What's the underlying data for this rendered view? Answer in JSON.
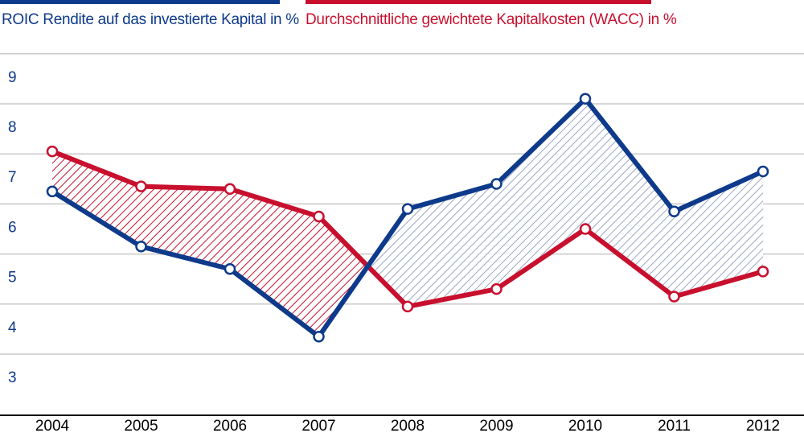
{
  "legend": {
    "roic": "ROIC Rendite auf das investierte Kapital in %",
    "wacc": "Durchschnittliche gewichtete Kapitalkosten (WACC) in %"
  },
  "colors": {
    "roic": "#0d3a8a",
    "wacc": "#c8102e",
    "grid": "#c9c9c9",
    "roic_fill": "#9aa6c4",
    "wacc_fill": "#c8102e"
  },
  "chart_data": {
    "type": "line",
    "title": "",
    "xlabel": "",
    "ylabel": "",
    "categories": [
      "2004",
      "2005",
      "2006",
      "2007",
      "2008",
      "2009",
      "2010",
      "2011",
      "2012"
    ],
    "yticks": [
      "3",
      "4",
      "5",
      "6",
      "7",
      "8",
      "9"
    ],
    "ylim": [
      2.5,
      9.5
    ],
    "grid": true,
    "series": [
      {
        "name": "ROIC Rendite auf das investierte Kapital in %",
        "values": [
          6.7,
          5.6,
          5.15,
          3.8,
          6.35,
          6.85,
          8.55,
          6.3,
          7.1
        ]
      },
      {
        "name": "Durchschnittliche gewichtete Kapitalkosten (WACC) in %",
        "values": [
          7.5,
          6.8,
          6.75,
          6.2,
          4.4,
          4.75,
          5.95,
          4.6,
          5.1
        ]
      }
    ]
  }
}
